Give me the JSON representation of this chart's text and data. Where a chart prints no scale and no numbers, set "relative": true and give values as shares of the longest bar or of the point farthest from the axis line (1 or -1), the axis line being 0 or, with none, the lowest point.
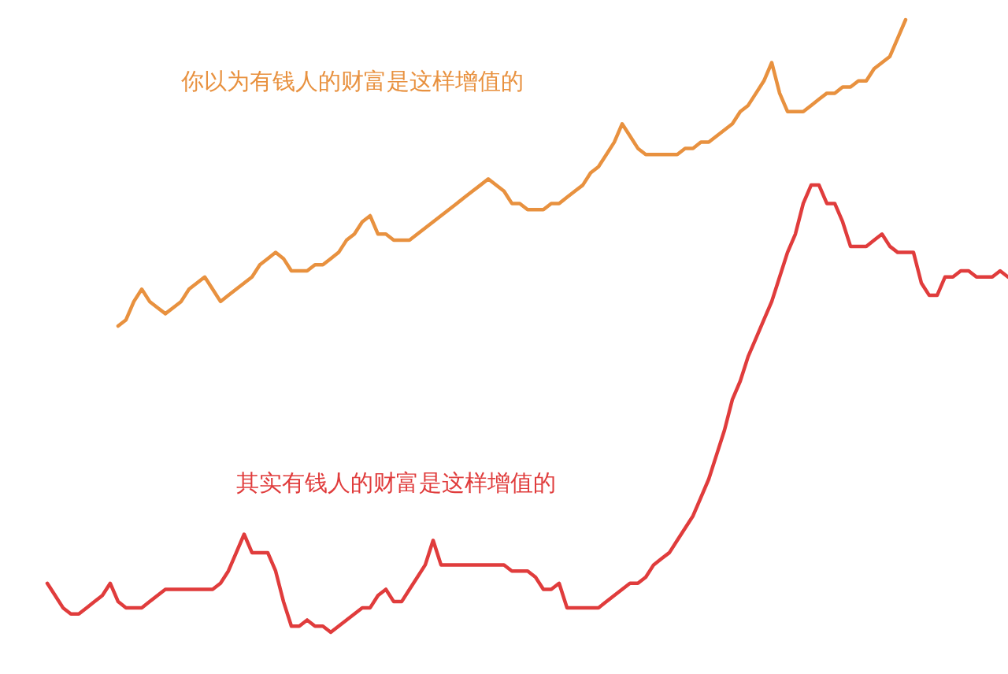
{
  "chart_data": {
    "type": "line",
    "relative": true,
    "legend": false,
    "marker": "none",
    "line_style": "solid",
    "categories": [
      null,
      null,
      null,
      null,
      null,
      null,
      null,
      null,
      null,
      null,
      null,
      null,
      null,
      null,
      null,
      null,
      null,
      null,
      null,
      null,
      null,
      null,
      null,
      null,
      null,
      null,
      null,
      null,
      null,
      null,
      null,
      null,
      null,
      null,
      null,
      null,
      null,
      null,
      null,
      null,
      null,
      null,
      null,
      null,
      null,
      null,
      null,
      null,
      null,
      null,
      null,
      null,
      null,
      null,
      null,
      null,
      null,
      null,
      null,
      null,
      null,
      null,
      null,
      null,
      null,
      null,
      null,
      null,
      null,
      null,
      null,
      null,
      null,
      null,
      null,
      null,
      null,
      null,
      null,
      null,
      null,
      null,
      null,
      null,
      null,
      null,
      null,
      null,
      null,
      null,
      null,
      null,
      null,
      null,
      null,
      null,
      null,
      null,
      null,
      null,
      null,
      null,
      null,
      null,
      null,
      null,
      null,
      null,
      null,
      null,
      null,
      null,
      null,
      null,
      null,
      null,
      null,
      null,
      null,
      null,
      null,
      null,
      null
    ],
    "series": [
      {
        "name": "你以为有钱人的财富是这样增值的",
        "color": "#e8913f",
        "values": [
          null,
          null,
          null,
          null,
          null,
          null,
          null,
          null,
          null,
          0.5,
          0.51,
          0.54,
          0.56,
          0.54,
          0.53,
          0.52,
          0.53,
          0.54,
          0.56,
          0.57,
          0.58,
          0.56,
          0.54,
          0.55,
          0.56,
          0.57,
          0.58,
          0.6,
          0.61,
          0.62,
          0.61,
          0.59,
          0.59,
          0.59,
          0.6,
          0.6,
          0.61,
          0.62,
          0.64,
          0.65,
          0.67,
          0.68,
          0.65,
          0.65,
          0.64,
          0.64,
          0.64,
          0.65,
          0.66,
          0.67,
          0.68,
          0.69,
          0.7,
          0.71,
          0.72,
          0.73,
          0.74,
          0.73,
          0.72,
          0.7,
          0.7,
          0.69,
          0.69,
          0.69,
          0.7,
          0.7,
          0.71,
          0.72,
          0.73,
          0.75,
          0.76,
          0.78,
          0.8,
          0.83,
          0.81,
          0.79,
          0.78,
          0.78,
          0.78,
          0.78,
          0.78,
          0.79,
          0.79,
          0.8,
          0.8,
          0.81,
          0.82,
          0.83,
          0.85,
          0.86,
          0.88,
          0.9,
          0.93,
          0.88,
          0.85,
          0.85,
          0.85,
          0.86,
          0.87,
          0.88,
          0.88,
          0.89,
          0.89,
          0.9,
          0.9,
          0.92,
          0.93,
          0.94,
          0.97,
          1.0,
          null,
          null,
          null,
          null,
          null,
          null,
          null,
          null,
          null,
          null,
          null,
          null,
          null
        ]
      },
      {
        "name": "其实有钱人的财富是这样增值的",
        "color": "#e03c3c",
        "values": [
          0.08,
          0.06,
          0.04,
          0.03,
          0.03,
          0.04,
          0.05,
          0.06,
          0.08,
          0.05,
          0.04,
          0.04,
          0.04,
          0.05,
          0.06,
          0.07,
          0.07,
          0.07,
          0.07,
          0.07,
          0.07,
          0.07,
          0.08,
          0.1,
          0.13,
          0.16,
          0.13,
          0.13,
          0.13,
          0.1,
          0.05,
          0.01,
          0.01,
          0.02,
          0.01,
          0.01,
          0.0,
          0.01,
          0.02,
          0.03,
          0.04,
          0.04,
          0.06,
          0.07,
          0.05,
          0.05,
          0.07,
          0.09,
          0.11,
          0.15,
          0.11,
          0.11,
          0.11,
          0.11,
          0.11,
          0.11,
          0.11,
          0.11,
          0.11,
          0.1,
          0.1,
          0.1,
          0.09,
          0.07,
          0.07,
          0.08,
          0.04,
          0.04,
          0.04,
          0.04,
          0.04,
          0.05,
          0.06,
          0.07,
          0.08,
          0.08,
          0.09,
          0.11,
          0.12,
          0.13,
          0.15,
          0.17,
          0.19,
          0.22,
          0.25,
          0.29,
          0.33,
          0.38,
          0.41,
          0.45,
          0.48,
          0.51,
          0.54,
          0.58,
          0.62,
          0.65,
          0.7,
          0.73,
          0.73,
          0.7,
          0.7,
          0.67,
          0.63,
          0.63,
          0.63,
          0.64,
          0.65,
          0.63,
          0.62,
          0.62,
          0.62,
          0.57,
          0.55,
          0.55,
          0.58,
          0.58,
          0.59,
          0.59,
          0.58,
          0.58,
          0.58,
          0.59,
          0.58
        ]
      }
    ]
  }
}
